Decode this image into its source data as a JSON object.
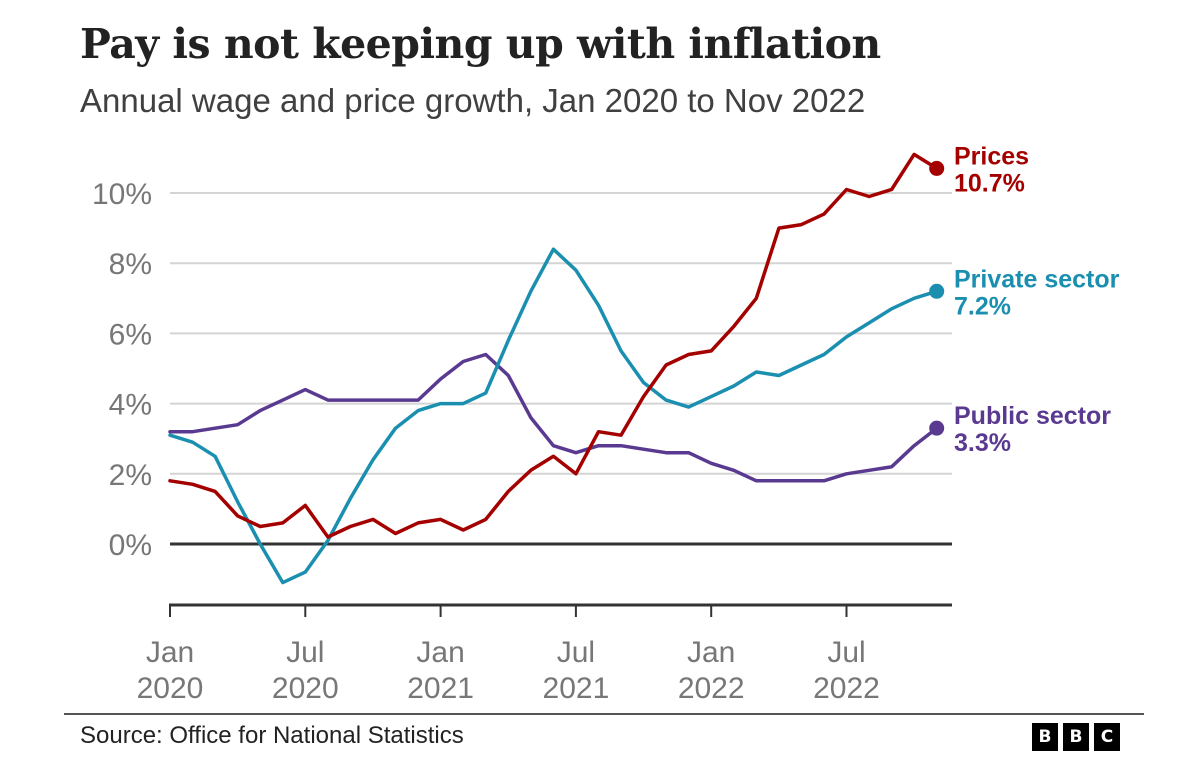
{
  "header": {
    "title": "Pay is not keeping up with inflation",
    "subtitle": "Annual wage and price growth, Jan 2020 to Nov 2022"
  },
  "footer": {
    "source": "Source: Office for National Statistics",
    "logo_letters": [
      "B",
      "B",
      "C"
    ]
  },
  "chart_data": {
    "type": "line",
    "title": "Pay is not keeping up with inflation",
    "subtitle": "Annual wage and price growth, Jan 2020 to Nov 2022",
    "xlabel": "",
    "ylabel": "",
    "ylim": [
      -1.5,
      11
    ],
    "grid": true,
    "yticks": [
      0,
      2,
      4,
      6,
      8,
      10
    ],
    "ytick_labels": [
      "0%",
      "2%",
      "4%",
      "6%",
      "8%",
      "10%"
    ],
    "xticks": [
      {
        "index": 0,
        "line1": "Jan",
        "line2": "2020"
      },
      {
        "index": 6,
        "line1": "Jul",
        "line2": "2020"
      },
      {
        "index": 12,
        "line1": "Jan",
        "line2": "2021"
      },
      {
        "index": 18,
        "line1": "Jul",
        "line2": "2021"
      },
      {
        "index": 24,
        "line1": "Jan",
        "line2": "2022"
      },
      {
        "index": 30,
        "line1": "Jul",
        "line2": "2022"
      }
    ],
    "x": [
      "Jan 2020",
      "Feb 2020",
      "Mar 2020",
      "Apr 2020",
      "May 2020",
      "Jun 2020",
      "Jul 2020",
      "Aug 2020",
      "Sep 2020",
      "Oct 2020",
      "Nov 2020",
      "Dec 2020",
      "Jan 2021",
      "Feb 2021",
      "Mar 2021",
      "Apr 2021",
      "May 2021",
      "Jun 2021",
      "Jul 2021",
      "Aug 2021",
      "Sep 2021",
      "Oct 2021",
      "Nov 2021",
      "Dec 2021",
      "Jan 2022",
      "Feb 2022",
      "Mar 2022",
      "Apr 2022",
      "May 2022",
      "Jun 2022",
      "Jul 2022",
      "Aug 2022",
      "Sep 2022",
      "Oct 2022",
      "Nov 2022"
    ],
    "legend_placement": "right (end-of-line labels)",
    "series": [
      {
        "name": "Prices",
        "label_value": "10.7%",
        "color": "#A50000",
        "values": [
          1.8,
          1.7,
          1.5,
          0.8,
          0.5,
          0.6,
          1.1,
          0.2,
          0.5,
          0.7,
          0.3,
          0.6,
          0.7,
          0.4,
          0.7,
          1.5,
          2.1,
          2.5,
          2.0,
          3.2,
          3.1,
          4.2,
          5.1,
          5.4,
          5.5,
          6.2,
          7.0,
          9.0,
          9.1,
          9.4,
          10.1,
          9.9,
          10.1,
          11.1,
          10.7
        ]
      },
      {
        "name": "Private sector",
        "label_value": "7.2%",
        "color": "#1A8FB0",
        "values": [
          3.1,
          2.9,
          2.5,
          1.2,
          0.0,
          -1.1,
          -0.8,
          0.1,
          1.3,
          2.4,
          3.3,
          3.8,
          4.0,
          4.0,
          4.3,
          5.8,
          7.2,
          8.4,
          7.8,
          6.8,
          5.5,
          4.6,
          4.1,
          3.9,
          4.2,
          4.5,
          4.9,
          4.8,
          5.1,
          5.4,
          5.9,
          6.3,
          6.7,
          7.0,
          7.2
        ]
      },
      {
        "name": "Public sector",
        "label_value": "3.3%",
        "color": "#5A3A90",
        "values": [
          3.2,
          3.2,
          3.3,
          3.4,
          3.8,
          4.1,
          4.4,
          4.1,
          4.1,
          4.1,
          4.1,
          4.1,
          4.7,
          5.2,
          5.4,
          4.8,
          3.6,
          2.8,
          2.6,
          2.8,
          2.8,
          2.7,
          2.6,
          2.6,
          2.3,
          2.1,
          1.8,
          1.8,
          1.8,
          1.8,
          2.0,
          2.1,
          2.2,
          2.8,
          3.3
        ]
      }
    ]
  }
}
